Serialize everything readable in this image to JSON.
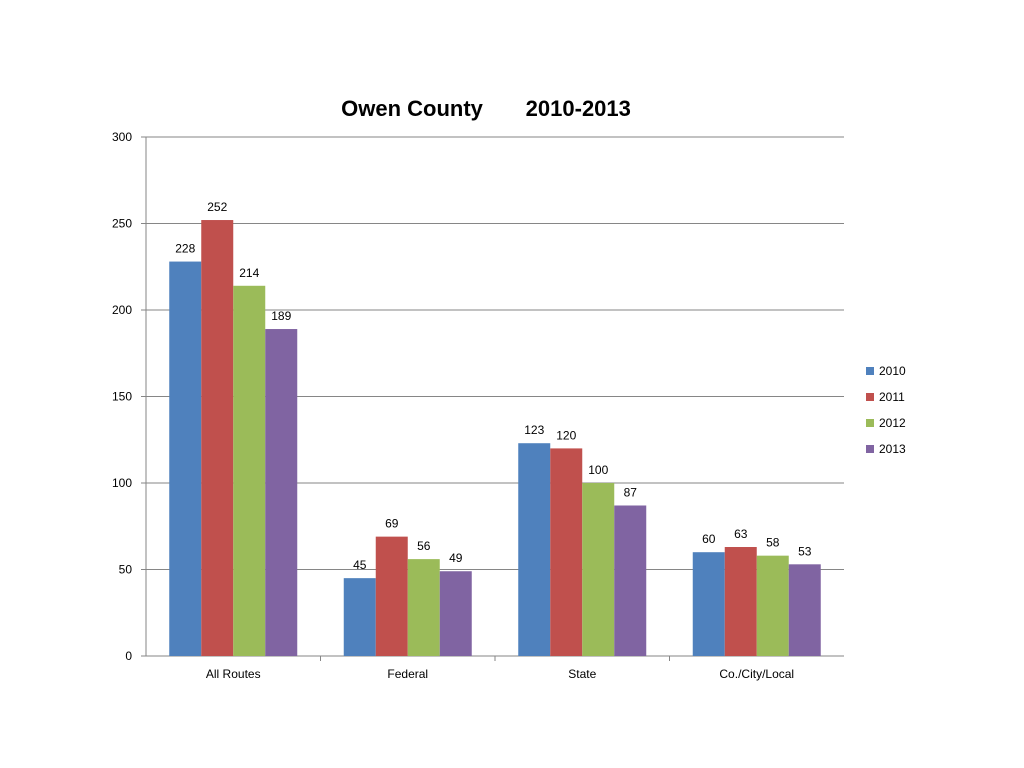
{
  "chart_data": {
    "type": "bar",
    "title": "Owen County       2010-2013",
    "xlabel": "",
    "ylabel": "",
    "ylim": [
      0,
      300
    ],
    "yticks": [
      0,
      50,
      100,
      150,
      200,
      250,
      300
    ],
    "grid": true,
    "legend_position": "right",
    "categories": [
      "All Routes",
      "Federal",
      "State",
      "Co./City/Local"
    ],
    "series": [
      {
        "name": "2010",
        "color": "#4f81bd",
        "values": [
          228,
          45,
          123,
          60
        ]
      },
      {
        "name": "2011",
        "color": "#c0504d",
        "values": [
          252,
          69,
          120,
          63
        ]
      },
      {
        "name": "2012",
        "color": "#9bbb59",
        "values": [
          214,
          56,
          100,
          58
        ]
      },
      {
        "name": "2013",
        "color": "#8064a2",
        "values": [
          189,
          49,
          87,
          53
        ]
      }
    ]
  }
}
